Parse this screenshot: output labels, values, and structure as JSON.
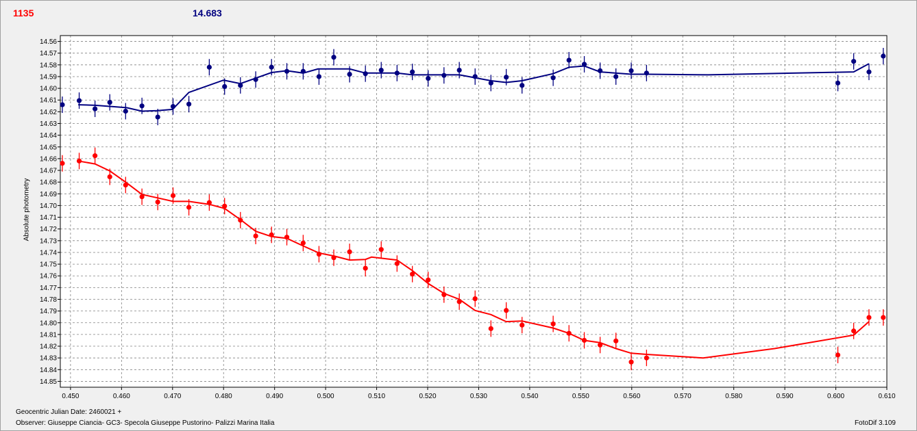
{
  "header": {
    "left_value": "1135",
    "right_value": "14.683"
  },
  "footer": {
    "line1": "Geocentric Julian Date: 2460021 +",
    "line2": "Observer: Giuseppe Ciancia- GC3- Specola Giuseppe Pustorino- Palizzi Marina Italia",
    "software": "FotoDif 3.109"
  },
  "chart_data": {
    "type": "scatter",
    "ylabel": "Absolute photometry",
    "xlabel": "",
    "xlim": [
      0.448,
      0.61
    ],
    "ylim": [
      14.555,
      14.855
    ],
    "y_inverted": true,
    "grid": true,
    "x_ticks": [
      "0.450",
      "0.460",
      "0.470",
      "0.480",
      "0.490",
      "0.500",
      "0.510",
      "0.520",
      "0.530",
      "0.540",
      "0.550",
      "0.560",
      "0.570",
      "0.580",
      "0.590",
      "0.600",
      "0.610"
    ],
    "y_ticks": [
      "14.56",
      "14.57",
      "14.58",
      "14.59",
      "14.60",
      "14.61",
      "14.62",
      "14.63",
      "14.64",
      "14.65",
      "14.66",
      "14.67",
      "14.68",
      "14.69",
      "14.70",
      "14.71",
      "14.72",
      "14.73",
      "14.74",
      "14.75",
      "14.76",
      "14.77",
      "14.78",
      "14.79",
      "14.80",
      "14.81",
      "14.82",
      "14.83",
      "14.84",
      "14.85"
    ],
    "series": [
      {
        "color": "#000080",
        "points": [
          [
            0.4484,
            14.614
          ],
          [
            0.4517,
            14.6105
          ],
          [
            0.4548,
            14.6175
          ],
          [
            0.4577,
            14.612
          ],
          [
            0.4608,
            14.6195
          ],
          [
            0.464,
            14.615
          ],
          [
            0.4671,
            14.6245
          ],
          [
            0.4701,
            14.6155
          ],
          [
            0.4732,
            14.6135
          ],
          [
            0.4772,
            14.582
          ],
          [
            0.4802,
            14.5985
          ],
          [
            0.4833,
            14.5975
          ],
          [
            0.4863,
            14.5925
          ],
          [
            0.4894,
            14.582
          ],
          [
            0.4924,
            14.5855
          ],
          [
            0.4956,
            14.5855
          ],
          [
            0.4987,
            14.59
          ],
          [
            0.5016,
            14.5735
          ],
          [
            0.5047,
            14.588
          ],
          [
            0.5078,
            14.5875
          ],
          [
            0.5109,
            14.5845
          ],
          [
            0.514,
            14.587
          ],
          [
            0.517,
            14.586
          ],
          [
            0.5201,
            14.5915
          ],
          [
            0.5232,
            14.589
          ],
          [
            0.5262,
            14.5845
          ],
          [
            0.5293,
            14.59
          ],
          [
            0.5324,
            14.5955
          ],
          [
            0.5354,
            14.5905
          ],
          [
            0.5385,
            14.5975
          ],
          [
            0.5446,
            14.591
          ],
          [
            0.5477,
            14.576
          ],
          [
            0.5507,
            14.5795
          ],
          [
            0.5538,
            14.585
          ],
          [
            0.5569,
            14.59
          ],
          [
            0.5599,
            14.585
          ],
          [
            0.5629,
            14.587
          ],
          [
            0.6004,
            14.5955
          ],
          [
            0.6035,
            14.577
          ],
          [
            0.6065,
            14.586
          ],
          [
            0.6093,
            14.5725
          ]
        ],
        "fit": [
          [
            0.4515,
            14.614
          ],
          [
            0.4548,
            14.6145
          ],
          [
            0.461,
            14.6165
          ],
          [
            0.464,
            14.6195
          ],
          [
            0.467,
            14.619
          ],
          [
            0.47,
            14.618
          ],
          [
            0.4732,
            14.6035
          ],
          [
            0.48,
            14.593
          ],
          [
            0.4833,
            14.596
          ],
          [
            0.4894,
            14.5865
          ],
          [
            0.4924,
            14.585
          ],
          [
            0.4956,
            14.587
          ],
          [
            0.4985,
            14.5835
          ],
          [
            0.5047,
            14.5835
          ],
          [
            0.5078,
            14.587
          ],
          [
            0.514,
            14.587
          ],
          [
            0.517,
            14.5885
          ],
          [
            0.5262,
            14.5885
          ],
          [
            0.5324,
            14.5935
          ],
          [
            0.5354,
            14.595
          ],
          [
            0.5385,
            14.5935
          ],
          [
            0.5446,
            14.5875
          ],
          [
            0.5477,
            14.582
          ],
          [
            0.5507,
            14.581
          ],
          [
            0.5538,
            14.586
          ],
          [
            0.5599,
            14.588
          ],
          [
            0.5629,
            14.588
          ],
          [
            0.575,
            14.5885
          ],
          [
            0.6035,
            14.586
          ],
          [
            0.6065,
            14.579
          ]
        ]
      },
      {
        "color": "#ff0000",
        "points": [
          [
            0.4484,
            14.664
          ],
          [
            0.4517,
            14.662
          ],
          [
            0.4548,
            14.6575
          ],
          [
            0.4577,
            14.6755
          ],
          [
            0.4608,
            14.6825
          ],
          [
            0.464,
            14.6925
          ],
          [
            0.4671,
            14.697
          ],
          [
            0.4701,
            14.6915
          ],
          [
            0.4732,
            14.7015
          ],
          [
            0.4772,
            14.6975
          ],
          [
            0.4802,
            14.7005
          ],
          [
            0.4833,
            14.7125
          ],
          [
            0.4863,
            14.726
          ],
          [
            0.4894,
            14.725
          ],
          [
            0.4924,
            14.727
          ],
          [
            0.4956,
            14.732
          ],
          [
            0.4987,
            14.7415
          ],
          [
            0.5016,
            14.7445
          ],
          [
            0.5047,
            14.7395
          ],
          [
            0.5078,
            14.7535
          ],
          [
            0.5109,
            14.7375
          ],
          [
            0.514,
            14.7495
          ],
          [
            0.517,
            14.7585
          ],
          [
            0.5201,
            14.7635
          ],
          [
            0.5232,
            14.776
          ],
          [
            0.5262,
            14.782
          ],
          [
            0.5293,
            14.7795
          ],
          [
            0.5324,
            14.805
          ],
          [
            0.5354,
            14.7895
          ],
          [
            0.5385,
            14.802
          ],
          [
            0.5446,
            14.801
          ],
          [
            0.5477,
            14.809
          ],
          [
            0.5507,
            14.815
          ],
          [
            0.5538,
            14.819
          ],
          [
            0.5569,
            14.8155
          ],
          [
            0.5599,
            14.8335
          ],
          [
            0.5629,
            14.83
          ],
          [
            0.6004,
            14.8275
          ],
          [
            0.6035,
            14.807
          ],
          [
            0.6065,
            14.7955
          ],
          [
            0.6093,
            14.7955
          ]
        ],
        "fit": [
          [
            0.4515,
            14.662
          ],
          [
            0.4548,
            14.6645
          ],
          [
            0.4577,
            14.6705
          ],
          [
            0.4608,
            14.68
          ],
          [
            0.464,
            14.6905
          ],
          [
            0.4671,
            14.6935
          ],
          [
            0.4701,
            14.6965
          ],
          [
            0.4732,
            14.6965
          ],
          [
            0.4772,
            14.699
          ],
          [
            0.4802,
            14.7025
          ],
          [
            0.4833,
            14.712
          ],
          [
            0.4863,
            14.722
          ],
          [
            0.4894,
            14.7265
          ],
          [
            0.4924,
            14.728
          ],
          [
            0.4956,
            14.7345
          ],
          [
            0.4987,
            14.7405
          ],
          [
            0.5016,
            14.743
          ],
          [
            0.5047,
            14.7465
          ],
          [
            0.5078,
            14.746
          ],
          [
            0.509,
            14.744
          ],
          [
            0.514,
            14.7465
          ],
          [
            0.517,
            14.7555
          ],
          [
            0.5201,
            14.7665
          ],
          [
            0.5232,
            14.775
          ],
          [
            0.5262,
            14.78
          ],
          [
            0.5293,
            14.7895
          ],
          [
            0.5324,
            14.793
          ],
          [
            0.5354,
            14.799
          ],
          [
            0.5385,
            14.7985
          ],
          [
            0.5446,
            14.8045
          ],
          [
            0.5477,
            14.809
          ],
          [
            0.5507,
            14.815
          ],
          [
            0.5538,
            14.817
          ],
          [
            0.5569,
            14.822
          ],
          [
            0.5599,
            14.826
          ],
          [
            0.5629,
            14.827
          ],
          [
            0.574,
            14.83
          ],
          [
            0.588,
            14.822
          ],
          [
            0.6035,
            14.8105
          ],
          [
            0.6065,
            14.799
          ]
        ]
      }
    ]
  }
}
